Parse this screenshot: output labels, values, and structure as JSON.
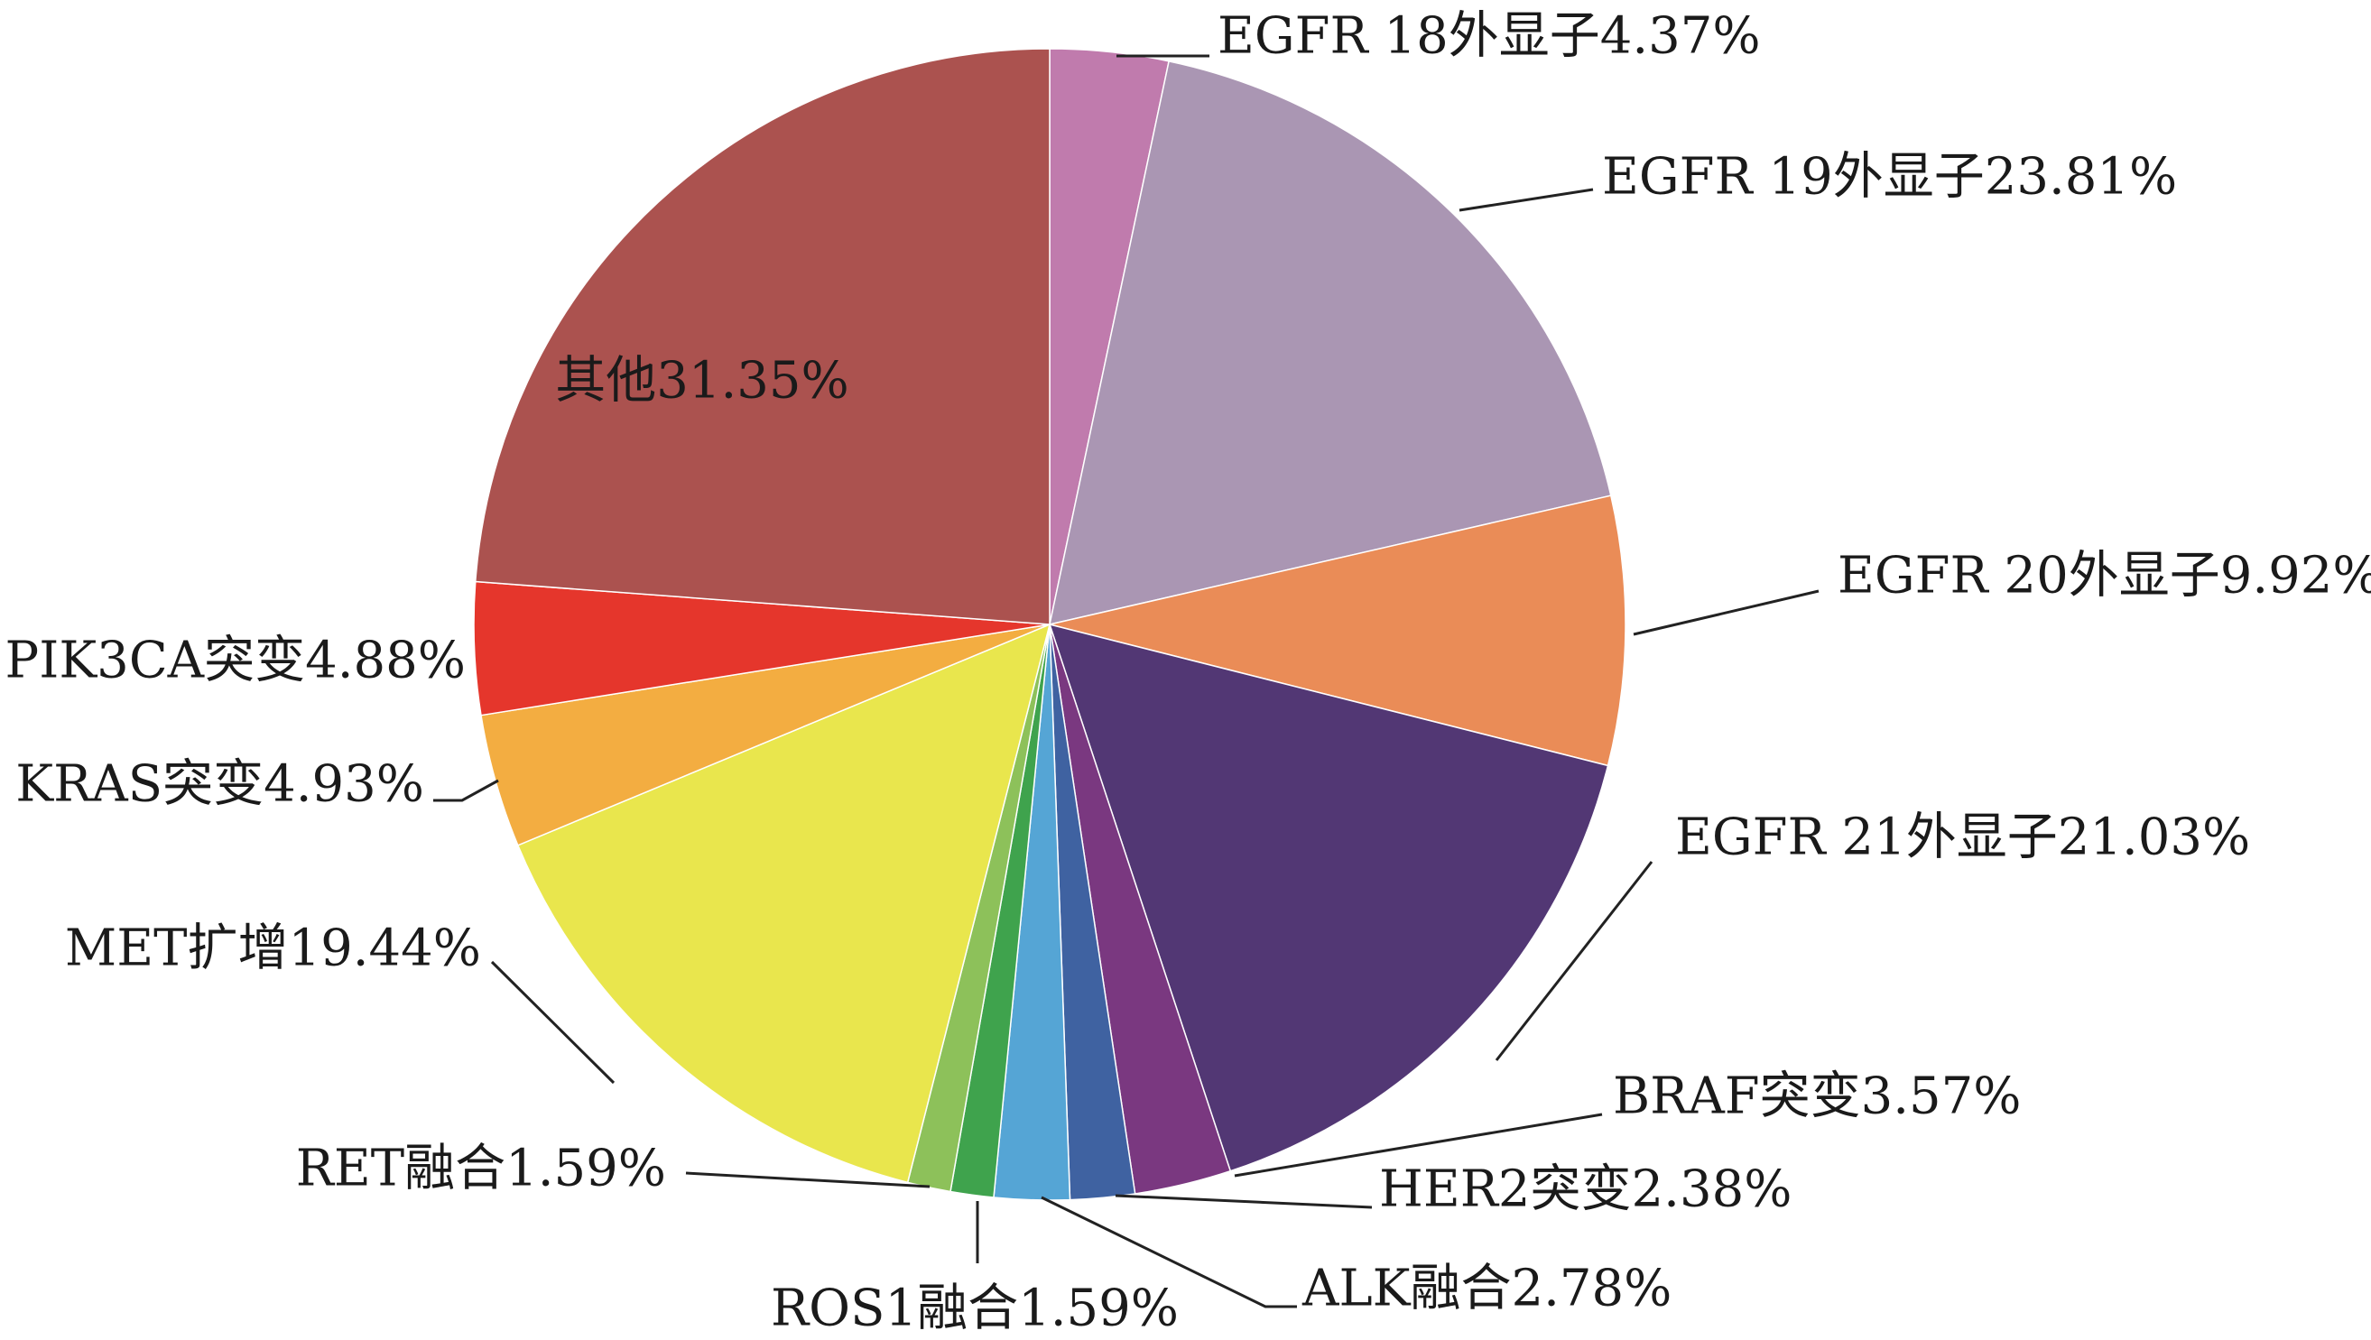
{
  "chart_data": {
    "type": "pie",
    "title": "",
    "slices": [
      {
        "label": "EGFR 18外显子4.37%",
        "value": 4.37,
        "color": "#C07BAD"
      },
      {
        "label": "EGFR 19外显子23.81%",
        "value": 23.81,
        "color": "#AA96B3"
      },
      {
        "label": "EGFR 20外显子9.92%",
        "value": 9.92,
        "color": "#EA8C57"
      },
      {
        "label": "EGFR 21外显子21.03%",
        "value": 21.03,
        "color": "#523774"
      },
      {
        "label": "BRAF突变3.57%",
        "value": 3.57,
        "color": "#7A3880"
      },
      {
        "label": "HER2突变2.38%",
        "value": 2.38,
        "color": "#3F62A1"
      },
      {
        "label": "ALK融合2.78%",
        "value": 2.78,
        "color": "#55A5D5"
      },
      {
        "label": "ROS1融合1.59%",
        "value": 1.59,
        "color": "#3FA34D"
      },
      {
        "label": "RET融合1.59%",
        "value": 1.59,
        "color": "#8DC15A"
      },
      {
        "label": "MET扩增19.44%",
        "value": 19.44,
        "color": "#E9E64D"
      },
      {
        "label": "KRAS突变4.93%",
        "value": 4.93,
        "color": "#F3AD41"
      },
      {
        "label": "PIK3CA突变4.88%",
        "value": 4.88,
        "color": "#E5362C"
      },
      {
        "label": "其他31.35%",
        "value": 31.35,
        "color": "#AB524F"
      }
    ]
  }
}
